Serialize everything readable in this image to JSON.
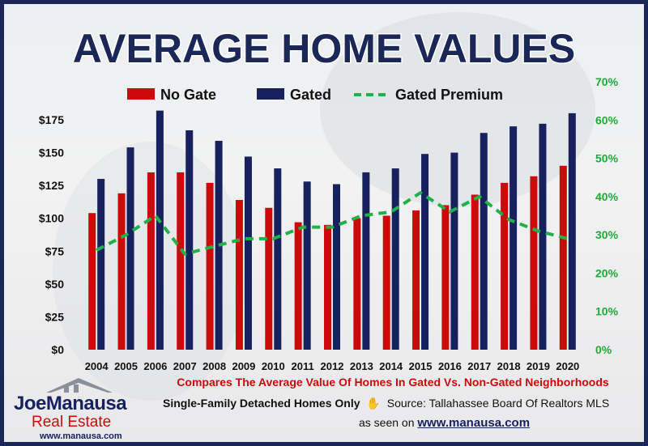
{
  "colors": {
    "no_gate": "#cc0a0a",
    "gated": "#16215e",
    "premium": "#22b04a",
    "right_axis": "#1faa3a",
    "title": "#1a2757"
  },
  "footer": {
    "subtitle": "Compares The Average Value Of Homes In Gated Vs. Non-Gated Neighborhoods",
    "note": "Single-Family Detached Homes Only",
    "source": "Source: Tallahassee Board Of Realtors MLS",
    "seen_on_prefix": "as seen on",
    "seen_on_url": "www.manausa.com"
  },
  "logo": {
    "name_part1": "Joe",
    "name_part2": "Manausa",
    "line2": "Real Estate",
    "url": "www.manausa.com"
  },
  "icons": [
    "house-icon",
    "hand-icon"
  ],
  "chart_data": {
    "type": "bar",
    "title": "AVERAGE HOME VALUES",
    "categories": [
      "2004",
      "2005",
      "2006",
      "2007",
      "2008",
      "2009",
      "2010",
      "2011",
      "2012",
      "2013",
      "2014",
      "2015",
      "2016",
      "2017",
      "2018",
      "2019",
      "2020"
    ],
    "series": [
      {
        "name": "No Gate",
        "type": "bar",
        "axis": "left",
        "values": [
          104,
          119,
          135,
          135,
          127,
          114,
          108,
          97,
          95,
          100,
          102,
          106,
          110,
          118,
          127,
          132,
          140
        ]
      },
      {
        "name": "Gated",
        "type": "bar",
        "axis": "left",
        "values": [
          130,
          154,
          182,
          167,
          159,
          147,
          138,
          128,
          126,
          135,
          138,
          149,
          150,
          165,
          170,
          172,
          180
        ]
      },
      {
        "name": "Gated Premium",
        "type": "line",
        "style": "dashed",
        "axis": "right",
        "values": [
          26,
          30,
          35,
          25,
          27,
          29,
          29,
          32,
          32,
          35,
          36,
          41,
          36,
          40,
          34,
          31,
          29
        ]
      }
    ],
    "left_axis": {
      "ylim": [
        0,
        200
      ],
      "ticks": [
        "$0",
        "$25",
        "$50",
        "$75",
        "$100",
        "$125",
        "$150",
        "$175"
      ]
    },
    "right_axis": {
      "ylim": [
        0,
        70
      ],
      "ticks": [
        "0%",
        "10%",
        "20%",
        "30%",
        "40%",
        "50%",
        "60%",
        "70%"
      ]
    },
    "legend_position": "top",
    "grid": false
  }
}
